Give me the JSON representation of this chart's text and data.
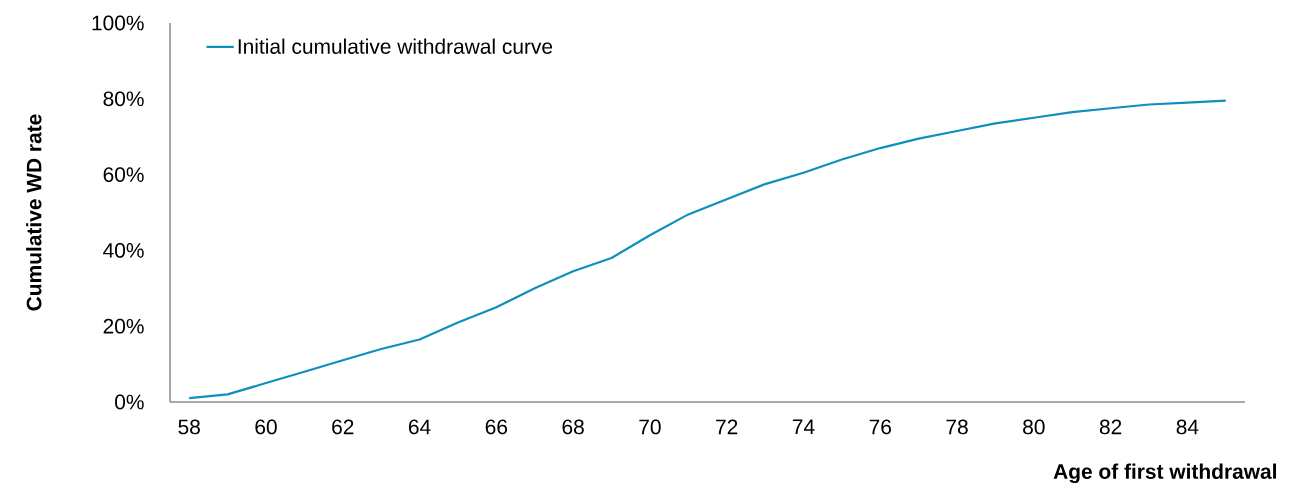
{
  "chart_data": {
    "type": "line",
    "xlabel": "Age of first withdrawal",
    "ylabel": "Cumulative WD rate",
    "x": [
      58,
      59,
      60,
      61,
      62,
      63,
      64,
      65,
      66,
      67,
      68,
      69,
      70,
      71,
      72,
      73,
      74,
      75,
      76,
      77,
      78,
      79,
      80,
      81,
      82,
      83,
      84,
      85
    ],
    "series": [
      {
        "name": "Initial cumulative withdrawal curve",
        "color": "#0e8fbd",
        "values": [
          1,
          2,
          5,
          8,
          11,
          14,
          16.5,
          21,
          25,
          30,
          34.5,
          38,
          44,
          49.5,
          53.5,
          57.5,
          60.5,
          64,
          67,
          69.5,
          71.5,
          73.5,
          75,
          76.5,
          77.5,
          78.5,
          79,
          79.5
        ]
      }
    ],
    "xlim": [
      57.5,
      85.5
    ],
    "xticks": [
      58,
      60,
      62,
      64,
      66,
      68,
      70,
      72,
      74,
      76,
      78,
      80,
      82,
      84
    ],
    "ylim": [
      0,
      100
    ],
    "yticks": [
      {
        "value": 0,
        "label": "0%"
      },
      {
        "value": 20,
        "label": "20%"
      },
      {
        "value": 40,
        "label": "40%"
      },
      {
        "value": 60,
        "label": "60%"
      },
      {
        "value": 80,
        "label": "80%"
      },
      {
        "value": 100,
        "label": "100%"
      }
    ],
    "legend": "top left",
    "grid": false
  }
}
